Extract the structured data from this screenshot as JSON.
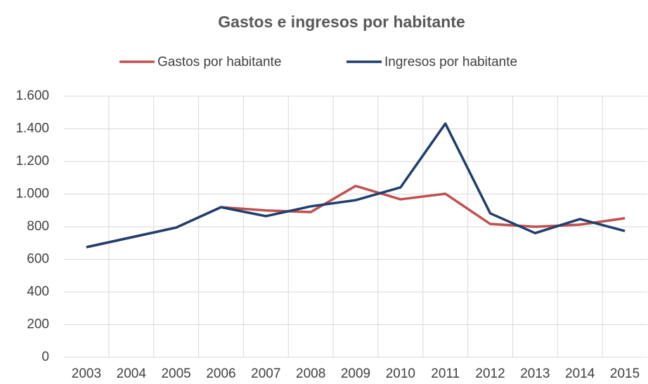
{
  "chart_data": {
    "type": "line",
    "title": "Gastos e ingresos por habitante",
    "categories": [
      "2003",
      "2004",
      "2005",
      "2006",
      "2007",
      "2008",
      "2009",
      "2010",
      "2011",
      "2012",
      "2013",
      "2014",
      "2015"
    ],
    "series": [
      {
        "name": "Gastos por habitante",
        "color": "#c0504d",
        "values": [
          675,
          735,
          795,
          920,
          900,
          890,
          1050,
          968,
          1002,
          817,
          800,
          813,
          852
        ]
      },
      {
        "name": "Ingresos por habitante",
        "color": "#1f3f6e",
        "values": [
          675,
          735,
          795,
          920,
          865,
          925,
          963,
          1041,
          1432,
          882,
          761,
          847,
          774
        ]
      }
    ],
    "ylim": [
      0,
      1600
    ],
    "yticks": [
      0,
      200,
      400,
      600,
      800,
      {
        "value": 1000,
        "label": "1.000"
      },
      {
        "value": 1200,
        "label": "1.200"
      },
      {
        "value": 1400,
        "label": "1.400"
      },
      {
        "value": 1600,
        "label": "1.600"
      }
    ],
    "grid": true,
    "legend": "top"
  }
}
